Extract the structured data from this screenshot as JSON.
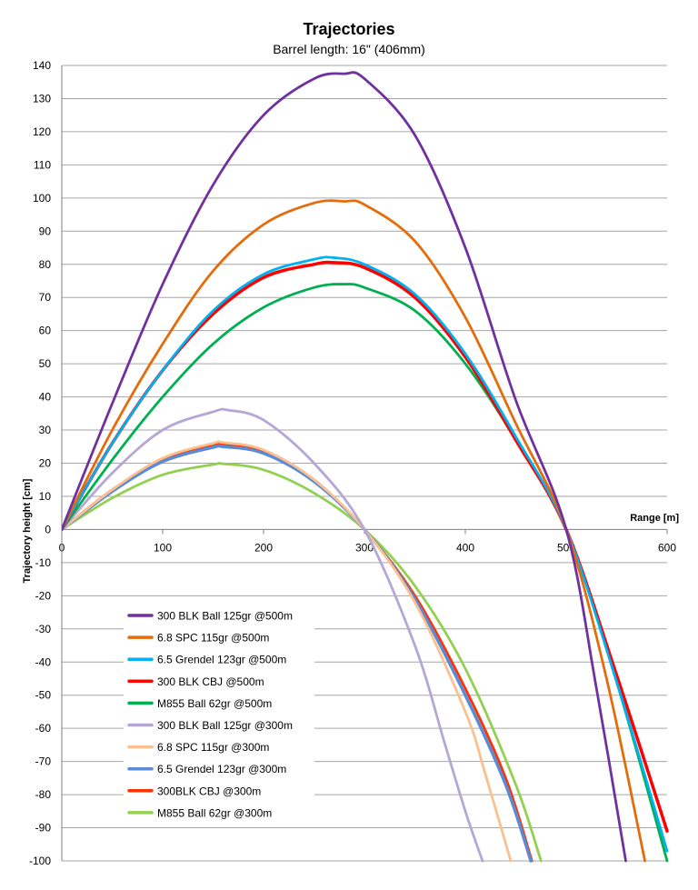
{
  "chart_data": {
    "type": "line",
    "title": "Trajectories",
    "subtitle": "Barrel length: 16\" (406mm)",
    "xlabel": "Range [m]",
    "ylabel": "Trajectory height [cm]",
    "xlim": [
      0,
      600
    ],
    "ylim": [
      -100,
      140
    ],
    "xticks": [
      0,
      100,
      200,
      300,
      400,
      500,
      600
    ],
    "yticks": [
      140,
      130,
      120,
      110,
      100,
      90,
      80,
      70,
      60,
      50,
      40,
      30,
      20,
      10,
      0,
      -10,
      -20,
      -30,
      -40,
      -50,
      -60,
      -70,
      -80,
      -90,
      -100
    ],
    "grid": true,
    "legend_position": "bottom-left",
    "series": [
      {
        "name": "300 BLK Ball 125gr @500m",
        "color": "#7030a0",
        "x": [
          0,
          50,
          100,
          150,
          200,
          250,
          280,
          300,
          350,
          400,
          450,
          500,
          530,
          559
        ],
        "y": [
          0,
          38,
          74,
          104,
          125,
          136,
          137.5,
          136,
          119,
          85,
          39,
          0,
          -48,
          -100
        ]
      },
      {
        "name": "6.8 SPC 115gr @500m",
        "color": "#e46c0a",
        "x": [
          0,
          50,
          100,
          150,
          200,
          250,
          280,
          300,
          350,
          400,
          450,
          500,
          540,
          578
        ],
        "y": [
          0,
          30,
          56,
          78,
          92,
          98.5,
          99,
          98,
          87,
          64,
          32,
          0,
          -45,
          -100
        ]
      },
      {
        "name": "6.5 Grendel 123gr @500m",
        "color": "#00b0f0",
        "x": [
          0,
          50,
          100,
          150,
          200,
          250,
          270,
          300,
          350,
          400,
          450,
          500,
          550,
          600
        ],
        "y": [
          0,
          26,
          48,
          66,
          77,
          81.5,
          82,
          80,
          71,
          53,
          28,
          0,
          -46,
          -97
        ]
      },
      {
        "name": "300 BLK CBJ @500m",
        "color": "#ff0000",
        "x": [
          0,
          50,
          100,
          150,
          200,
          250,
          270,
          300,
          350,
          400,
          450,
          500,
          550,
          600
        ],
        "y": [
          0,
          26,
          48,
          65,
          76,
          80,
          80.5,
          79,
          70,
          52,
          27,
          0,
          -44,
          -91
        ]
      },
      {
        "name": "M855 Ball 62gr @500m",
        "color": "#00b050",
        "x": [
          0,
          50,
          100,
          150,
          200,
          250,
          280,
          300,
          350,
          400,
          450,
          500,
          550,
          600
        ],
        "y": [
          0,
          21,
          40,
          56,
          67,
          73,
          74,
          73,
          66,
          50,
          27,
          0,
          -46,
          -100
        ]
      },
      {
        "name": "300 BLK Ball 125gr @300m",
        "color": "#b4a7d6",
        "x": [
          0,
          50,
          100,
          150,
          165,
          200,
          250,
          300,
          350,
          380,
          400,
          417
        ],
        "y": [
          0,
          17,
          30,
          35.5,
          36,
          33,
          20,
          0,
          -35,
          -65,
          -85,
          -100
        ]
      },
      {
        "name": "6.8 SPC 115gr @300m",
        "color": "#fac090",
        "x": [
          0,
          50,
          100,
          150,
          160,
          200,
          250,
          300,
          350,
          400,
          420,
          445
        ],
        "y": [
          0,
          12,
          21.5,
          26,
          26.2,
          24,
          15,
          0,
          -22,
          -55,
          -74,
          -100
        ]
      },
      {
        "name": "6.5 Grendel 123gr @300m",
        "color": "#5b8bd5",
        "x": [
          0,
          50,
          100,
          150,
          160,
          200,
          250,
          300,
          350,
          400,
          440,
          465
        ],
        "y": [
          0,
          11.5,
          20.5,
          24.8,
          25,
          23,
          14.5,
          0,
          -21,
          -50,
          -77,
          -100
        ]
      },
      {
        "name": "300BLK CBJ @300m",
        "color": "#ff3300",
        "x": [
          0,
          50,
          100,
          150,
          160,
          200,
          250,
          300,
          350,
          400,
          440,
          466
        ],
        "y": [
          0,
          12,
          21,
          25.3,
          25.5,
          23.5,
          15,
          0,
          -20,
          -48,
          -75,
          -100
        ]
      },
      {
        "name": "M855 Ball 62gr @300m",
        "color": "#92d050",
        "x": [
          0,
          50,
          100,
          150,
          160,
          200,
          250,
          300,
          350,
          400,
          450,
          475
        ],
        "y": [
          0,
          9.5,
          16.5,
          19.6,
          19.8,
          18,
          11,
          0,
          -17,
          -42,
          -77,
          -100
        ]
      }
    ]
  }
}
